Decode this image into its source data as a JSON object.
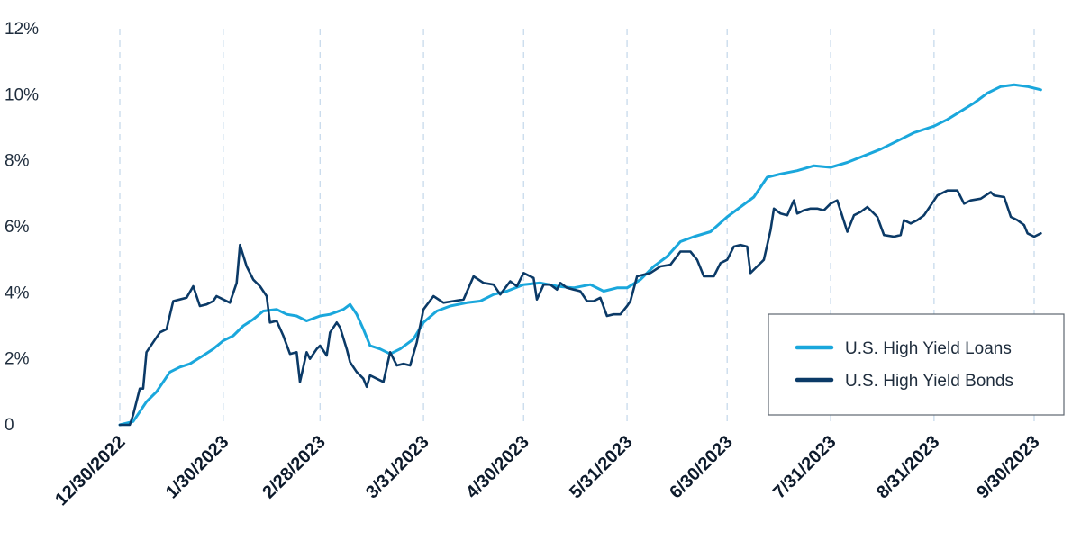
{
  "chart_data": {
    "type": "line",
    "title": "",
    "xlabel": "",
    "ylabel": "",
    "ylim": [
      0,
      12
    ],
    "y_ticks": [
      "0",
      "2%",
      "4%",
      "6%",
      "8%",
      "10%",
      "12%"
    ],
    "x_ticks": [
      "12/30/2022",
      "1/30/2023",
      "2/28/2023",
      "3/31/2023",
      "4/30/2023",
      "5/31/2023",
      "6/30/2023",
      "7/31/2023",
      "8/31/2023",
      "9/30/2023"
    ],
    "x_start": "12/30/2022",
    "grid": "vertical dashed",
    "legend_position": "lower-right",
    "series": [
      {
        "name": "U.S. High Yield Loans",
        "color": "#1aa7dc",
        "points": [
          [
            "12/30/2022",
            0.0
          ],
          [
            "1/3/2023",
            0.1
          ],
          [
            "1/5/2023",
            0.4
          ],
          [
            "1/7/2023",
            0.7
          ],
          [
            "1/10/2023",
            1.0
          ],
          [
            "1/12/2023",
            1.3
          ],
          [
            "1/14/2023",
            1.6
          ],
          [
            "1/17/2023",
            1.75
          ],
          [
            "1/20/2023",
            1.85
          ],
          [
            "1/24/2023",
            2.1
          ],
          [
            "1/27/2023",
            2.3
          ],
          [
            "1/30/2023",
            2.55
          ],
          [
            "2/2/2023",
            2.7
          ],
          [
            "2/5/2023",
            3.0
          ],
          [
            "2/8/2023",
            3.2
          ],
          [
            "2/11/2023",
            3.45
          ],
          [
            "2/15/2023",
            3.5
          ],
          [
            "2/18/2023",
            3.35
          ],
          [
            "2/21/2023",
            3.3
          ],
          [
            "2/24/2023",
            3.15
          ],
          [
            "2/28/2023",
            3.3
          ],
          [
            "3/3/2023",
            3.35
          ],
          [
            "3/7/2023",
            3.5
          ],
          [
            "3/9/2023",
            3.65
          ],
          [
            "3/11/2023",
            3.35
          ],
          [
            "3/13/2023",
            2.9
          ],
          [
            "3/15/2023",
            2.4
          ],
          [
            "3/18/2023",
            2.3
          ],
          [
            "3/21/2023",
            2.15
          ],
          [
            "3/24/2023",
            2.3
          ],
          [
            "3/28/2023",
            2.6
          ],
          [
            "3/31/2023",
            3.1
          ],
          [
            "4/4/2023",
            3.45
          ],
          [
            "4/8/2023",
            3.6
          ],
          [
            "4/13/2023",
            3.7
          ],
          [
            "4/17/2023",
            3.75
          ],
          [
            "4/21/2023",
            3.95
          ],
          [
            "4/25/2023",
            4.05
          ],
          [
            "4/30/2023",
            4.25
          ],
          [
            "5/5/2023",
            4.3
          ],
          [
            "5/10/2023",
            4.2
          ],
          [
            "5/15/2023",
            4.15
          ],
          [
            "5/20/2023",
            4.25
          ],
          [
            "5/24/2023",
            4.05
          ],
          [
            "5/28/2023",
            4.15
          ],
          [
            "5/31/2023",
            4.15
          ],
          [
            "6/4/2023",
            4.4
          ],
          [
            "6/8/2023",
            4.8
          ],
          [
            "6/12/2023",
            5.1
          ],
          [
            "6/16/2023",
            5.55
          ],
          [
            "6/20/2023",
            5.7
          ],
          [
            "6/25/2023",
            5.85
          ],
          [
            "6/30/2023",
            6.3
          ],
          [
            "7/4/2023",
            6.6
          ],
          [
            "7/8/2023",
            6.9
          ],
          [
            "7/12/2023",
            7.5
          ],
          [
            "7/16/2023",
            7.6
          ],
          [
            "7/21/2023",
            7.7
          ],
          [
            "7/26/2023",
            7.85
          ],
          [
            "7/31/2023",
            7.8
          ],
          [
            "8/5/2023",
            7.95
          ],
          [
            "8/10/2023",
            8.15
          ],
          [
            "8/15/2023",
            8.35
          ],
          [
            "8/20/2023",
            8.6
          ],
          [
            "8/25/2023",
            8.85
          ],
          [
            "8/31/2023",
            9.05
          ],
          [
            "9/4/2023",
            9.25
          ],
          [
            "9/8/2023",
            9.5
          ],
          [
            "9/12/2023",
            9.75
          ],
          [
            "9/16/2023",
            10.05
          ],
          [
            "9/20/2023",
            10.25
          ],
          [
            "9/24/2023",
            10.3
          ],
          [
            "9/28/2023",
            10.25
          ],
          [
            "10/2/2023",
            10.15
          ]
        ]
      },
      {
        "name": "U.S. High Yield Bonds",
        "color": "#0b3a67",
        "points": [
          [
            "12/30/2022",
            0.0
          ],
          [
            "1/2/2023",
            0.0
          ],
          [
            "1/3/2023",
            0.3
          ],
          [
            "1/5/2023",
            1.1
          ],
          [
            "1/6/2023",
            1.1
          ],
          [
            "1/7/2023",
            2.2
          ],
          [
            "1/9/2023",
            2.5
          ],
          [
            "1/11/2023",
            2.8
          ],
          [
            "1/13/2023",
            2.9
          ],
          [
            "1/15/2023",
            3.75
          ],
          [
            "1/17/2023",
            3.8
          ],
          [
            "1/19/2023",
            3.85
          ],
          [
            "1/21/2023",
            4.2
          ],
          [
            "1/23/2023",
            3.6
          ],
          [
            "1/25/2023",
            3.65
          ],
          [
            "1/27/2023",
            3.75
          ],
          [
            "1/28/2023",
            3.9
          ],
          [
            "1/30/2023",
            3.8
          ],
          [
            "2/1/2023",
            3.7
          ],
          [
            "2/3/2023",
            4.3
          ],
          [
            "2/4/2023",
            5.45
          ],
          [
            "2/6/2023",
            4.8
          ],
          [
            "2/8/2023",
            4.4
          ],
          [
            "2/10/2023",
            4.2
          ],
          [
            "2/12/2023",
            3.9
          ],
          [
            "2/13/2023",
            3.1
          ],
          [
            "2/15/2023",
            3.15
          ],
          [
            "2/17/2023",
            2.7
          ],
          [
            "2/19/2023",
            2.15
          ],
          [
            "2/21/2023",
            2.2
          ],
          [
            "2/22/2023",
            1.3
          ],
          [
            "2/24/2023",
            2.2
          ],
          [
            "2/25/2023",
            2.0
          ],
          [
            "2/27/2023",
            2.3
          ],
          [
            "2/28/2023",
            2.4
          ],
          [
            "3/2/2023",
            2.1
          ],
          [
            "3/3/2023",
            2.8
          ],
          [
            "3/5/2023",
            3.1
          ],
          [
            "3/6/2023",
            2.95
          ],
          [
            "3/8/2023",
            2.3
          ],
          [
            "3/9/2023",
            1.9
          ],
          [
            "3/11/2023",
            1.6
          ],
          [
            "3/13/2023",
            1.4
          ],
          [
            "3/14/2023",
            1.15
          ],
          [
            "3/15/2023",
            1.5
          ],
          [
            "3/17/2023",
            1.4
          ],
          [
            "3/19/2023",
            1.3
          ],
          [
            "3/21/2023",
            2.2
          ],
          [
            "3/23/2023",
            1.8
          ],
          [
            "3/25/2023",
            1.85
          ],
          [
            "3/27/2023",
            1.8
          ],
          [
            "3/29/2023",
            2.5
          ],
          [
            "3/31/2023",
            3.5
          ],
          [
            "4/3/2023",
            3.9
          ],
          [
            "4/6/2023",
            3.7
          ],
          [
            "4/9/2023",
            3.75
          ],
          [
            "4/12/2023",
            3.8
          ],
          [
            "4/15/2023",
            4.5
          ],
          [
            "4/18/2023",
            4.3
          ],
          [
            "4/21/2023",
            4.25
          ],
          [
            "4/23/2023",
            3.95
          ],
          [
            "4/26/2023",
            4.35
          ],
          [
            "4/28/2023",
            4.2
          ],
          [
            "4/30/2023",
            4.6
          ],
          [
            "5/3/2023",
            4.45
          ],
          [
            "5/4/2023",
            3.8
          ],
          [
            "5/6/2023",
            4.25
          ],
          [
            "5/8/2023",
            4.25
          ],
          [
            "5/10/2023",
            4.1
          ],
          [
            "5/11/2023",
            4.3
          ],
          [
            "5/13/2023",
            4.15
          ],
          [
            "5/15/2023",
            4.1
          ],
          [
            "5/17/2023",
            4.05
          ],
          [
            "5/19/2023",
            3.75
          ],
          [
            "5/21/2023",
            3.75
          ],
          [
            "5/23/2023",
            3.85
          ],
          [
            "5/25/2023",
            3.3
          ],
          [
            "5/27/2023",
            3.35
          ],
          [
            "5/29/2023",
            3.35
          ],
          [
            "5/31/2023",
            3.6
          ],
          [
            "6/1/2023",
            3.75
          ],
          [
            "6/3/2023",
            4.5
          ],
          [
            "6/5/2023",
            4.55
          ],
          [
            "6/7/2023",
            4.6
          ],
          [
            "6/10/2023",
            4.8
          ],
          [
            "6/13/2023",
            4.85
          ],
          [
            "6/16/2023",
            5.25
          ],
          [
            "6/19/2023",
            5.25
          ],
          [
            "6/21/2023",
            5.0
          ],
          [
            "6/23/2023",
            4.5
          ],
          [
            "6/26/2023",
            4.5
          ],
          [
            "6/28/2023",
            4.9
          ],
          [
            "6/30/2023",
            5.0
          ],
          [
            "7/2/2023",
            5.4
          ],
          [
            "7/4/2023",
            5.45
          ],
          [
            "7/6/2023",
            5.4
          ],
          [
            "7/7/2023",
            4.6
          ],
          [
            "7/9/2023",
            4.8
          ],
          [
            "7/11/2023",
            5.0
          ],
          [
            "7/13/2023",
            5.9
          ],
          [
            "7/14/2023",
            6.55
          ],
          [
            "7/16/2023",
            6.4
          ],
          [
            "7/18/2023",
            6.35
          ],
          [
            "7/20/2023",
            6.8
          ],
          [
            "7/21/2023",
            6.4
          ],
          [
            "7/23/2023",
            6.5
          ],
          [
            "7/25/2023",
            6.55
          ],
          [
            "7/27/2023",
            6.55
          ],
          [
            "7/29/2023",
            6.5
          ],
          [
            "7/31/2023",
            6.7
          ],
          [
            "8/2/2023",
            6.8
          ],
          [
            "8/5/2023",
            5.85
          ],
          [
            "8/7/2023",
            6.35
          ],
          [
            "8/9/2023",
            6.45
          ],
          [
            "8/11/2023",
            6.6
          ],
          [
            "8/14/2023",
            6.3
          ],
          [
            "8/16/2023",
            5.75
          ],
          [
            "8/19/2023",
            5.7
          ],
          [
            "8/21/2023",
            5.75
          ],
          [
            "8/22/2023",
            6.2
          ],
          [
            "8/24/2023",
            6.1
          ],
          [
            "8/26/2023",
            6.2
          ],
          [
            "8/28/2023",
            6.35
          ],
          [
            "8/30/2023",
            6.65
          ],
          [
            "9/1/2023",
            6.95
          ],
          [
            "9/4/2023",
            7.1
          ],
          [
            "9/7/2023",
            7.1
          ],
          [
            "9/9/2023",
            6.7
          ],
          [
            "9/11/2023",
            6.8
          ],
          [
            "9/14/2023",
            6.85
          ],
          [
            "9/17/2023",
            7.05
          ],
          [
            "9/18/2023",
            6.95
          ],
          [
            "9/21/2023",
            6.9
          ],
          [
            "9/23/2023",
            6.3
          ],
          [
            "9/25/2023",
            6.2
          ],
          [
            "9/27/2023",
            6.05
          ],
          [
            "9/28/2023",
            5.8
          ],
          [
            "9/30/2023",
            5.7
          ],
          [
            "10/2/2023",
            5.8
          ]
        ]
      }
    ]
  }
}
